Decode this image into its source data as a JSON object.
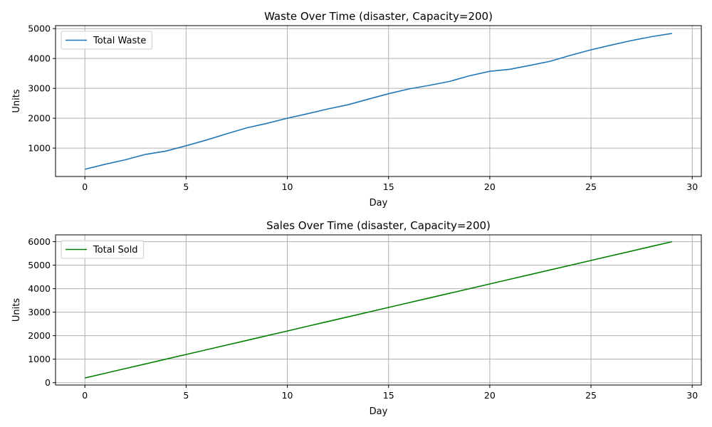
{
  "chart_data": [
    {
      "type": "line",
      "title": "Waste Over Time (disaster, Capacity=200)",
      "xlabel": "Day",
      "ylabel": "Units",
      "xlim": [
        -1.45,
        30.45
      ],
      "ylim": [
        50,
        5100
      ],
      "xticks": [
        0,
        5,
        10,
        15,
        20,
        25,
        30
      ],
      "yticks": [
        1000,
        2000,
        3000,
        4000,
        5000
      ],
      "grid": true,
      "legend_position": "upper left",
      "series": [
        {
          "name": "Total Waste",
          "color": "#1f77b4",
          "x": [
            0,
            1,
            2,
            3,
            4,
            5,
            6,
            7,
            8,
            9,
            10,
            11,
            12,
            13,
            14,
            15,
            16,
            17,
            18,
            19,
            20,
            21,
            22,
            23,
            24,
            25,
            26,
            27,
            28,
            29
          ],
          "y": [
            290,
            460,
            610,
            790,
            900,
            1080,
            1270,
            1480,
            1680,
            1830,
            2000,
            2150,
            2310,
            2450,
            2640,
            2820,
            2980,
            3100,
            3230,
            3420,
            3570,
            3640,
            3770,
            3910,
            4110,
            4290,
            4450,
            4600,
            4730,
            4840
          ]
        }
      ]
    },
    {
      "type": "line",
      "title": "Sales Over Time (disaster, Capacity=200)",
      "xlabel": "Day",
      "ylabel": "Units",
      "xlim": [
        -1.45,
        30.45
      ],
      "ylim": [
        -100,
        6290
      ],
      "xticks": [
        0,
        5,
        10,
        15,
        20,
        25,
        30
      ],
      "yticks": [
        0,
        1000,
        2000,
        3000,
        4000,
        5000,
        6000
      ],
      "grid": true,
      "legend_position": "upper left",
      "series": [
        {
          "name": "Total Sold",
          "color": "#008000",
          "x": [
            0,
            1,
            2,
            3,
            4,
            5,
            6,
            7,
            8,
            9,
            10,
            11,
            12,
            13,
            14,
            15,
            16,
            17,
            18,
            19,
            20,
            21,
            22,
            23,
            24,
            25,
            26,
            27,
            28,
            29
          ],
          "y": [
            200,
            400,
            600,
            800,
            1000,
            1200,
            1400,
            1600,
            1800,
            2000,
            2200,
            2400,
            2600,
            2800,
            3000,
            3200,
            3400,
            3600,
            3800,
            4000,
            4200,
            4400,
            4600,
            4800,
            5000,
            5200,
            5400,
            5600,
            5800,
            6000
          ]
        }
      ]
    }
  ]
}
